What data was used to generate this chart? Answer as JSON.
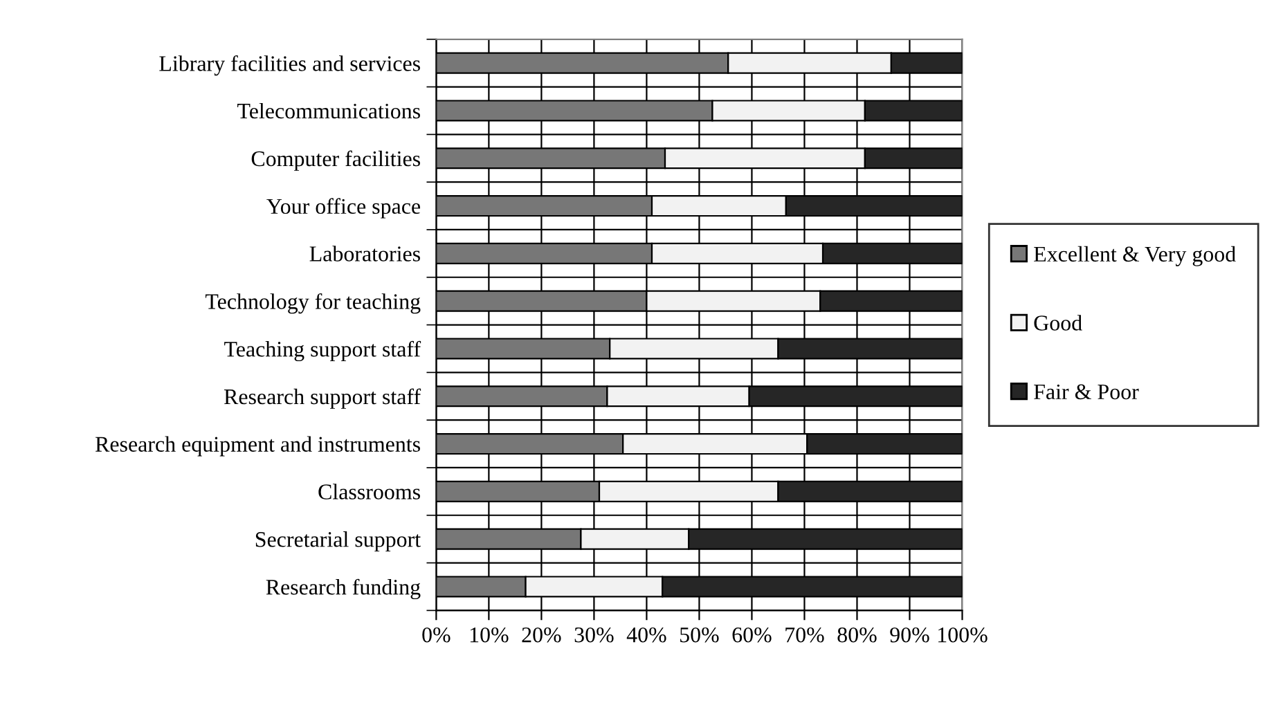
{
  "chart_data": {
    "type": "bar",
    "orientation": "horizontal",
    "stacked": true,
    "categories": [
      "Library facilities and services",
      "Telecommunications",
      "Computer facilities",
      "Your office space",
      "Laboratories",
      "Technology for teaching",
      "Teaching support staff",
      "Research support staff",
      "Research equipment and instruments",
      "Classrooms",
      "Secretarial support",
      "Research funding"
    ],
    "series": [
      {
        "name": "Excellent & Very good",
        "color": "#777777",
        "values": [
          55.5,
          52.5,
          43.5,
          41,
          41,
          40,
          33,
          32.5,
          35.5,
          31,
          27.5,
          17
        ]
      },
      {
        "name": "Good",
        "color": "#f2f2f2",
        "values": [
          31,
          29,
          38,
          25.5,
          32.5,
          33,
          32,
          27,
          35,
          34,
          20.5,
          26
        ]
      },
      {
        "name": "Fair & Poor",
        "color": "#262626",
        "values": [
          13.5,
          18.5,
          18.5,
          33.5,
          26.5,
          27,
          35,
          40.5,
          29.5,
          35,
          52,
          57
        ]
      }
    ],
    "xlim": [
      0,
      100
    ],
    "xticks": [
      {
        "value": 0,
        "label": "0%"
      },
      {
        "value": 10,
        "label": "10%"
      },
      {
        "value": 20,
        "label": "20%"
      },
      {
        "value": 30,
        "label": "30%"
      },
      {
        "value": 40,
        "label": "40%"
      },
      {
        "value": 50,
        "label": "50%"
      },
      {
        "value": 60,
        "label": "60%"
      },
      {
        "value": 70,
        "label": "70%"
      },
      {
        "value": 80,
        "label": "80%"
      },
      {
        "value": 90,
        "label": "90%"
      },
      {
        "value": 100,
        "label": "100%"
      }
    ],
    "grid": true,
    "legend": "right"
  }
}
